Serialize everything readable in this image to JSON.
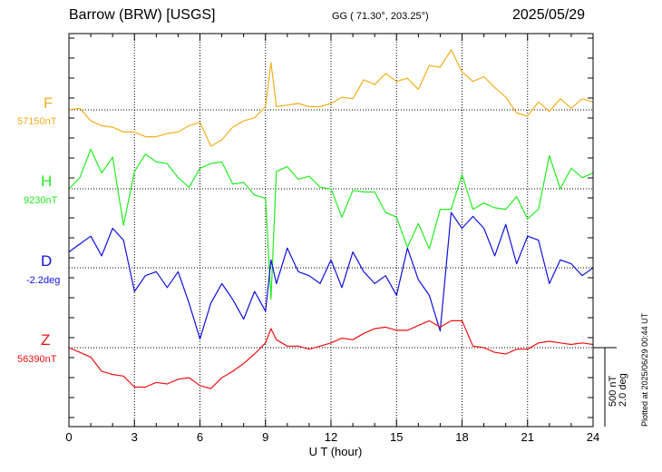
{
  "header": {
    "station": "Barrow (BRW)  [USGS]",
    "coords": "GG ( 71.30°, 203.25°)",
    "date": "2025/05/29"
  },
  "side_note": "Plotted at 2025/06/29 00:44 UT",
  "scale": {
    "line1": "500 nT",
    "line2": "2.0 deg"
  },
  "colors": {
    "F": "#f5ae1e",
    "H": "#22ee22",
    "D": "#1010dd",
    "Z": "#ee1111"
  },
  "chart_data": {
    "type": "line",
    "title": "Barrow (BRW)  [USGS]",
    "xlabel": "U T (hour)",
    "x_ticks": [
      "0",
      "3",
      "6",
      "9",
      "12",
      "15",
      "18",
      "21",
      "24"
    ],
    "xlim": [
      0,
      24
    ],
    "grid": true,
    "scale_bar": "500 nT / 2.0 deg",
    "series": [
      {
        "name": "F",
        "baseline_label": "57150nT",
        "units": "nT",
        "baseline": 57150,
        "x": [
          0,
          0.5,
          1,
          1.5,
          2,
          2.5,
          3,
          3.5,
          4,
          4.5,
          5,
          5.5,
          6,
          6.5,
          7,
          7.5,
          8,
          8.5,
          9,
          9.25,
          9.5,
          10,
          10.5,
          11,
          11.5,
          12,
          12.5,
          13,
          13.5,
          14,
          14.5,
          15,
          15.5,
          16,
          16.5,
          17,
          17.5,
          18,
          18.5,
          19,
          19.5,
          20,
          20.5,
          21,
          21.5,
          22,
          22.5,
          23,
          23.5,
          24
        ],
        "y": [
          57150,
          57160,
          57080,
          57050,
          57040,
          57010,
          57010,
          56980,
          56980,
          57000,
          57010,
          57050,
          57070,
          56920,
          56960,
          57040,
          57080,
          57100,
          57170,
          57450,
          57170,
          57180,
          57190,
          57170,
          57170,
          57190,
          57230,
          57220,
          57340,
          57310,
          57380,
          57330,
          57350,
          57280,
          57430,
          57420,
          57530,
          57390,
          57330,
          57360,
          57290,
          57230,
          57130,
          57110,
          57200,
          57140,
          57220,
          57160,
          57220,
          57200
        ]
      },
      {
        "name": "H",
        "baseline_label": "9230nT",
        "units": "nT",
        "baseline": 9230,
        "x": [
          0,
          0.5,
          1,
          1.5,
          2,
          2.5,
          3,
          3.5,
          4,
          4.5,
          5,
          5.5,
          6,
          6.5,
          7,
          7.5,
          8,
          8.5,
          9,
          9.25,
          9.5,
          10,
          10.5,
          11,
          11.5,
          12,
          12.5,
          13,
          13.5,
          14,
          14.5,
          15,
          15.5,
          16,
          16.5,
          17,
          17.5,
          18,
          18.5,
          19,
          19.5,
          20,
          20.5,
          21,
          21.5,
          22,
          22.5,
          23,
          23.5,
          24
        ],
        "y": [
          9230,
          9300,
          9480,
          9330,
          9430,
          9000,
          9340,
          9450,
          9400,
          9390,
          9300,
          9240,
          9360,
          9390,
          9400,
          9260,
          9270,
          9190,
          9170,
          8530,
          9340,
          9370,
          9290,
          9310,
          9240,
          9230,
          9050,
          9220,
          9210,
          9210,
          9080,
          9050,
          8860,
          9010,
          8850,
          9100,
          9100,
          9320,
          9100,
          9140,
          9110,
          9100,
          9180,
          9040,
          9100,
          9440,
          9230,
          9360,
          9300,
          9330
        ]
      },
      {
        "name": "D",
        "baseline_label": "-2.2deg",
        "units": "deg",
        "baseline": -2.2,
        "x": [
          0,
          0.5,
          1,
          1.5,
          2,
          2.5,
          3,
          3.5,
          4,
          4.5,
          5,
          5.5,
          6,
          6.5,
          7,
          7.5,
          8,
          8.5,
          9,
          9.25,
          9.5,
          10,
          10.5,
          11,
          11.5,
          12,
          12.5,
          13,
          13.5,
          14,
          14.5,
          15,
          15.5,
          16,
          16.5,
          17,
          17.5,
          18,
          18.5,
          19,
          19.5,
          20,
          20.5,
          21,
          21.5,
          22,
          22.5,
          23,
          23.5,
          24
        ],
        "y": [
          -1.8,
          -1.6,
          -1.4,
          -1.9,
          -1.2,
          -1.5,
          -2.8,
          -2.4,
          -2.3,
          -2.7,
          -2.3,
          -3.1,
          -4.0,
          -3.1,
          -2.6,
          -3.0,
          -3.5,
          -2.8,
          -3.3,
          -2.0,
          -2.6,
          -1.7,
          -2.3,
          -2.4,
          -2.6,
          -2.0,
          -2.7,
          -1.8,
          -2.3,
          -2.6,
          -2.4,
          -2.9,
          -1.7,
          -2.5,
          -2.9,
          -3.8,
          -0.8,
          -1.2,
          -0.9,
          -1.2,
          -1.9,
          -1.1,
          -2.1,
          -1.4,
          -1.5,
          -2.6,
          -2.0,
          -2.1,
          -2.4,
          -2.2
        ]
      },
      {
        "name": "Z",
        "baseline_label": "56390nT",
        "units": "nT",
        "baseline": 56390,
        "x": [
          0,
          0.5,
          1,
          1.5,
          2,
          2.5,
          3,
          3.5,
          4,
          4.5,
          5,
          5.5,
          6,
          6.5,
          7,
          7.5,
          8,
          8.5,
          9,
          9.25,
          9.5,
          10,
          10.5,
          11,
          11.5,
          12,
          12.5,
          13,
          13.5,
          14,
          14.5,
          15,
          15.5,
          16,
          16.5,
          17,
          17.5,
          18,
          18.5,
          19,
          19.5,
          20,
          20.5,
          21,
          21.5,
          22,
          22.5,
          23,
          23.5,
          24
        ],
        "y": [
          56390,
          56360,
          56330,
          56240,
          56220,
          56210,
          56140,
          56140,
          56170,
          56160,
          56190,
          56200,
          56150,
          56130,
          56200,
          56240,
          56290,
          56350,
          56420,
          56510,
          56440,
          56400,
          56400,
          56380,
          56400,
          56420,
          56450,
          56440,
          56480,
          56510,
          56520,
          56500,
          56500,
          56530,
          56560,
          56520,
          56560,
          56560,
          56400,
          56390,
          56360,
          56350,
          56380,
          56380,
          56420,
          56430,
          56420,
          56410,
          56420,
          56410
        ]
      }
    ]
  }
}
